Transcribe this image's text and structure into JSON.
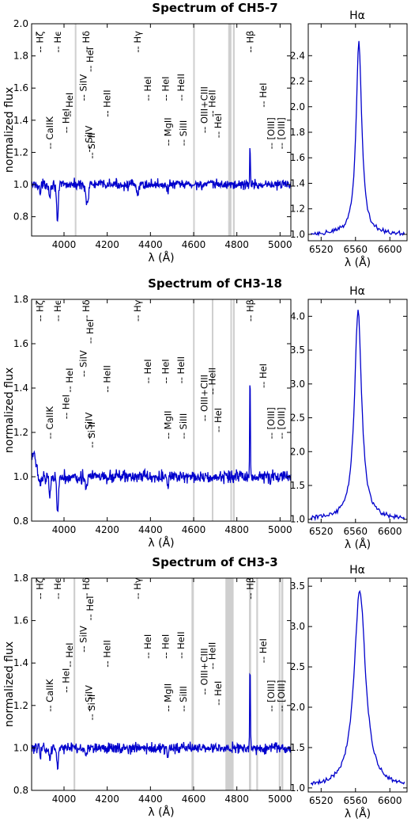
{
  "chart_data": [
    {
      "type": "line",
      "title": "Spectrum of CH5-7",
      "xlabel": "λ (Å)",
      "ylabel": "normalized flux",
      "xlim": [
        3850,
        5050
      ],
      "ylim": [
        0.68,
        2.0
      ],
      "xticks": [
        "4000",
        "4200",
        "4400",
        "4600",
        "4800",
        "5000"
      ],
      "yticks": [
        "0.8",
        "1.0",
        "1.2",
        "1.4",
        "1.6",
        "1.8",
        "2.0"
      ],
      "masked_regions": [
        [
          4050,
          4053
        ],
        [
          4598,
          4602
        ],
        [
          4760,
          4775
        ],
        [
          4782,
          4790
        ]
      ],
      "series": [
        {
          "color": "#0000cc",
          "continuum": 1.0,
          "noise": 0.022,
          "features": [
            {
              "center": 3890,
              "depth": 0.06,
              "width": 3
            },
            {
              "center": 3934,
              "depth": 0.08,
              "width": 3
            },
            {
              "center": 3970,
              "depth": 0.24,
              "width": 4
            },
            {
              "center": 4102,
              "depth": 0.07,
              "width": 4
            },
            {
              "center": 4110,
              "depth": 0.1,
              "width": 4
            },
            {
              "center": 4340,
              "depth": 0.07,
              "width": 5
            },
            {
              "center": 4481,
              "depth": 0.05,
              "width": 3
            },
            {
              "center": 4861,
              "depth": -0.26,
              "width": 1.5
            }
          ]
        }
      ],
      "annotations": [
        {
          "label": "Hζ",
          "x": 3889,
          "y": 1.82
        },
        {
          "label": "Hϵ",
          "x": 3970,
          "y": 1.82
        },
        {
          "label": "Hδ",
          "x": 4102,
          "y": 1.82
        },
        {
          "label": "Hγ",
          "x": 4340,
          "y": 1.82
        },
        {
          "label": "Hβ",
          "x": 4861,
          "y": 1.82
        },
        {
          "label": "HeI",
          "x": 4121,
          "y": 1.7
        },
        {
          "label": "SiIV",
          "x": 4089,
          "y": 1.52
        },
        {
          "label": "HeI",
          "x": 4026,
          "y": 1.42
        },
        {
          "label": "HeI",
          "x": 4009,
          "y": 1.32
        },
        {
          "label": "HeII",
          "x": 4200,
          "y": 1.42
        },
        {
          "label": "CaIIK",
          "x": 3934,
          "y": 1.22
        },
        {
          "label": "SiIV",
          "x": 4116,
          "y": 1.2
        },
        {
          "label": "Si II",
          "x": 4128,
          "y": 1.16
        },
        {
          "label": "HeI",
          "x": 4388,
          "y": 1.52
        },
        {
          "label": "HeI",
          "x": 4471,
          "y": 1.52
        },
        {
          "label": "HeII",
          "x": 4542,
          "y": 1.52
        },
        {
          "label": "MgII",
          "x": 4481,
          "y": 1.24
        },
        {
          "label": "SiIII",
          "x": 4553,
          "y": 1.24
        },
        {
          "label": "OIII+CIII",
          "x": 4650,
          "y": 1.32
        },
        {
          "label": "HeII",
          "x": 4686,
          "y": 1.42
        },
        {
          "label": "HeI",
          "x": 4713,
          "y": 1.29
        },
        {
          "label": "HeI",
          "x": 4922,
          "y": 1.48
        },
        {
          "label": "[OIII]",
          "x": 4959,
          "y": 1.22
        },
        {
          "label": "[OIII]",
          "x": 5007,
          "y": 1.22
        }
      ]
    },
    {
      "type": "line",
      "title": "Hα",
      "xlabel": "λ (Å)",
      "ylabel": "",
      "xlim": [
        6505,
        6620
      ],
      "ylim": [
        0.95,
        2.65
      ],
      "xticks": [
        "6520",
        "6560",
        "6600"
      ],
      "yticks": [
        "1.0",
        "1.2",
        "1.4",
        "1.6",
        "1.8",
        "2.0",
        "2.2",
        "2.4"
      ],
      "series": [
        {
          "color": "#0000cc",
          "peak_center": 6564,
          "peak_height": 1.5,
          "peak_width": 4
        }
      ]
    },
    {
      "type": "line",
      "title": "Spectrum of CH3-18",
      "xlabel": "λ (Å)",
      "ylabel": "normalized flux",
      "xlim": [
        3850,
        5050
      ],
      "ylim": [
        0.8,
        1.8
      ],
      "xticks": [
        "4000",
        "4200",
        "4400",
        "4600",
        "4800",
        "5000"
      ],
      "yticks": [
        "0.8",
        "1.0",
        "1.2",
        "1.4",
        "1.6",
        "1.8"
      ],
      "masked_regions": [
        [
          4597,
          4602
        ],
        [
          4684,
          4689
        ],
        [
          4770,
          4774
        ],
        [
          4782,
          4790
        ]
      ],
      "series": [
        {
          "color": "#0000cc",
          "continuum": 1.0,
          "noise": 0.02,
          "features": [
            {
              "center": 3860,
              "depth": -0.1,
              "width": 12
            },
            {
              "center": 3890,
              "depth": 0.06,
              "width": 3
            },
            {
              "center": 3934,
              "depth": 0.09,
              "width": 3
            },
            {
              "center": 3970,
              "depth": 0.16,
              "width": 4
            },
            {
              "center": 4102,
              "depth": 0.06,
              "width": 4
            },
            {
              "center": 4481,
              "depth": 0.06,
              "width": 3
            },
            {
              "center": 4861,
              "depth": -0.51,
              "width": 1.5
            }
          ]
        }
      ],
      "annotations": [
        {
          "label": "Hζ",
          "x": 3889,
          "y": 1.7
        },
        {
          "label": "Hϵ",
          "x": 3970,
          "y": 1.7
        },
        {
          "label": "Hδ",
          "x": 4102,
          "y": 1.7
        },
        {
          "label": "Hγ",
          "x": 4340,
          "y": 1.7
        },
        {
          "label": "Hβ",
          "x": 4861,
          "y": 1.7
        },
        {
          "label": "HeI",
          "x": 4121,
          "y": 1.6
        },
        {
          "label": "SiIV",
          "x": 4089,
          "y": 1.45
        },
        {
          "label": "HeI",
          "x": 4026,
          "y": 1.38
        },
        {
          "label": "HeI",
          "x": 4009,
          "y": 1.26
        },
        {
          "label": "HeII",
          "x": 4200,
          "y": 1.38
        },
        {
          "label": "CaIIK",
          "x": 3934,
          "y": 1.17
        },
        {
          "label": "SiIV",
          "x": 4116,
          "y": 1.17
        },
        {
          "label": "Si II",
          "x": 4128,
          "y": 1.13
        },
        {
          "label": "HeI",
          "x": 4388,
          "y": 1.42
        },
        {
          "label": "HeI",
          "x": 4471,
          "y": 1.42
        },
        {
          "label": "HeII",
          "x": 4542,
          "y": 1.42
        },
        {
          "label": "MgII",
          "x": 4481,
          "y": 1.17
        },
        {
          "label": "SiIII",
          "x": 4553,
          "y": 1.17
        },
        {
          "label": "OIII+CIII",
          "x": 4650,
          "y": 1.25
        },
        {
          "label": "HeII",
          "x": 4686,
          "y": 1.37
        },
        {
          "label": "HeI",
          "x": 4713,
          "y": 1.2
        },
        {
          "label": "HeI",
          "x": 4922,
          "y": 1.4
        },
        {
          "label": "[OIII]",
          "x": 4959,
          "y": 1.17
        },
        {
          "label": "[OIII]",
          "x": 5007,
          "y": 1.17
        }
      ]
    },
    {
      "type": "line",
      "title": "Hα",
      "xlabel": "λ (Å)",
      "ylabel": "",
      "xlim": [
        6505,
        6620
      ],
      "ylim": [
        0.95,
        4.25
      ],
      "xticks": [
        "6520",
        "6560",
        "6600"
      ],
      "yticks": [
        "1.0",
        "1.5",
        "2.0",
        "2.5",
        "3.0",
        "3.5",
        "4.0"
      ],
      "series": [
        {
          "color": "#0000cc",
          "peak_center": 6563,
          "peak_height": 3.1,
          "peak_width": 5
        }
      ]
    },
    {
      "type": "line",
      "title": "Spectrum of CH3-3",
      "xlabel": "λ (Å)",
      "ylabel": "normalized flux",
      "xlim": [
        3850,
        5050
      ],
      "ylim": [
        0.8,
        1.8
      ],
      "xticks": [
        "4000",
        "4200",
        "4400",
        "4600",
        "4800",
        "5000"
      ],
      "yticks": [
        "0.8",
        "1.0",
        "1.2",
        "1.4",
        "1.6",
        "1.8"
      ],
      "masked_regions": [
        [
          4044,
          4052
        ],
        [
          4590,
          4601
        ],
        [
          4747,
          4785
        ],
        [
          4856,
          4866
        ],
        [
          4890,
          4898
        ],
        [
          4994,
          5000
        ],
        [
          5005,
          5015
        ]
      ],
      "series": [
        {
          "color": "#0000cc",
          "continuum": 1.0,
          "noise": 0.018,
          "features": [
            {
              "center": 3890,
              "depth": 0.05,
              "width": 3
            },
            {
              "center": 3934,
              "depth": 0.07,
              "width": 3
            },
            {
              "center": 3970,
              "depth": 0.1,
              "width": 4
            },
            {
              "center": 4102,
              "depth": 0.05,
              "width": 4
            },
            {
              "center": 4481,
              "depth": 0.06,
              "width": 3
            },
            {
              "center": 4861,
              "depth": -0.41,
              "width": 1.5
            }
          ]
        }
      ],
      "annotations": [
        {
          "label": "Hζ",
          "x": 3889,
          "y": 1.7
        },
        {
          "label": "Hϵ",
          "x": 3970,
          "y": 1.7
        },
        {
          "label": "Hδ",
          "x": 4102,
          "y": 1.7
        },
        {
          "label": "Hγ",
          "x": 4340,
          "y": 1.7
        },
        {
          "label": "Hβ",
          "x": 4861,
          "y": 1.7
        },
        {
          "label": "HeI",
          "x": 4121,
          "y": 1.6
        },
        {
          "label": "SiIV",
          "x": 4089,
          "y": 1.45
        },
        {
          "label": "HeI",
          "x": 4026,
          "y": 1.38
        },
        {
          "label": "HeI",
          "x": 4009,
          "y": 1.26
        },
        {
          "label": "HeII",
          "x": 4200,
          "y": 1.38
        },
        {
          "label": "CaIIK",
          "x": 3934,
          "y": 1.17
        },
        {
          "label": "SiIV",
          "x": 4116,
          "y": 1.17
        },
        {
          "label": "Si II",
          "x": 4128,
          "y": 1.13
        },
        {
          "label": "HeI",
          "x": 4388,
          "y": 1.42
        },
        {
          "label": "HeI",
          "x": 4471,
          "y": 1.42
        },
        {
          "label": "HeII",
          "x": 4542,
          "y": 1.42
        },
        {
          "label": "MgII",
          "x": 4481,
          "y": 1.17
        },
        {
          "label": "SiIII",
          "x": 4553,
          "y": 1.17
        },
        {
          "label": "OIII+CIII",
          "x": 4650,
          "y": 1.25
        },
        {
          "label": "HeII",
          "x": 4686,
          "y": 1.37
        },
        {
          "label": "HeI",
          "x": 4713,
          "y": 1.2
        },
        {
          "label": "HeI",
          "x": 4922,
          "y": 1.4
        },
        {
          "label": "[OIII]",
          "x": 4959,
          "y": 1.17
        },
        {
          "label": "[OIII]",
          "x": 5007,
          "y": 1.17
        }
      ]
    },
    {
      "type": "line",
      "title": "Hα",
      "xlabel": "λ (Å)",
      "ylabel": "",
      "xlim": [
        6505,
        6620
      ],
      "ylim": [
        0.95,
        3.6
      ],
      "xticks": [
        "6520",
        "6560",
        "6600"
      ],
      "yticks": [
        "1.0",
        "1.5",
        "2.0",
        "2.5",
        "3.0",
        "3.5"
      ],
      "series": [
        {
          "color": "#0000cc",
          "peak_center": 6565,
          "peak_height": 2.45,
          "peak_width": 8
        }
      ]
    }
  ]
}
